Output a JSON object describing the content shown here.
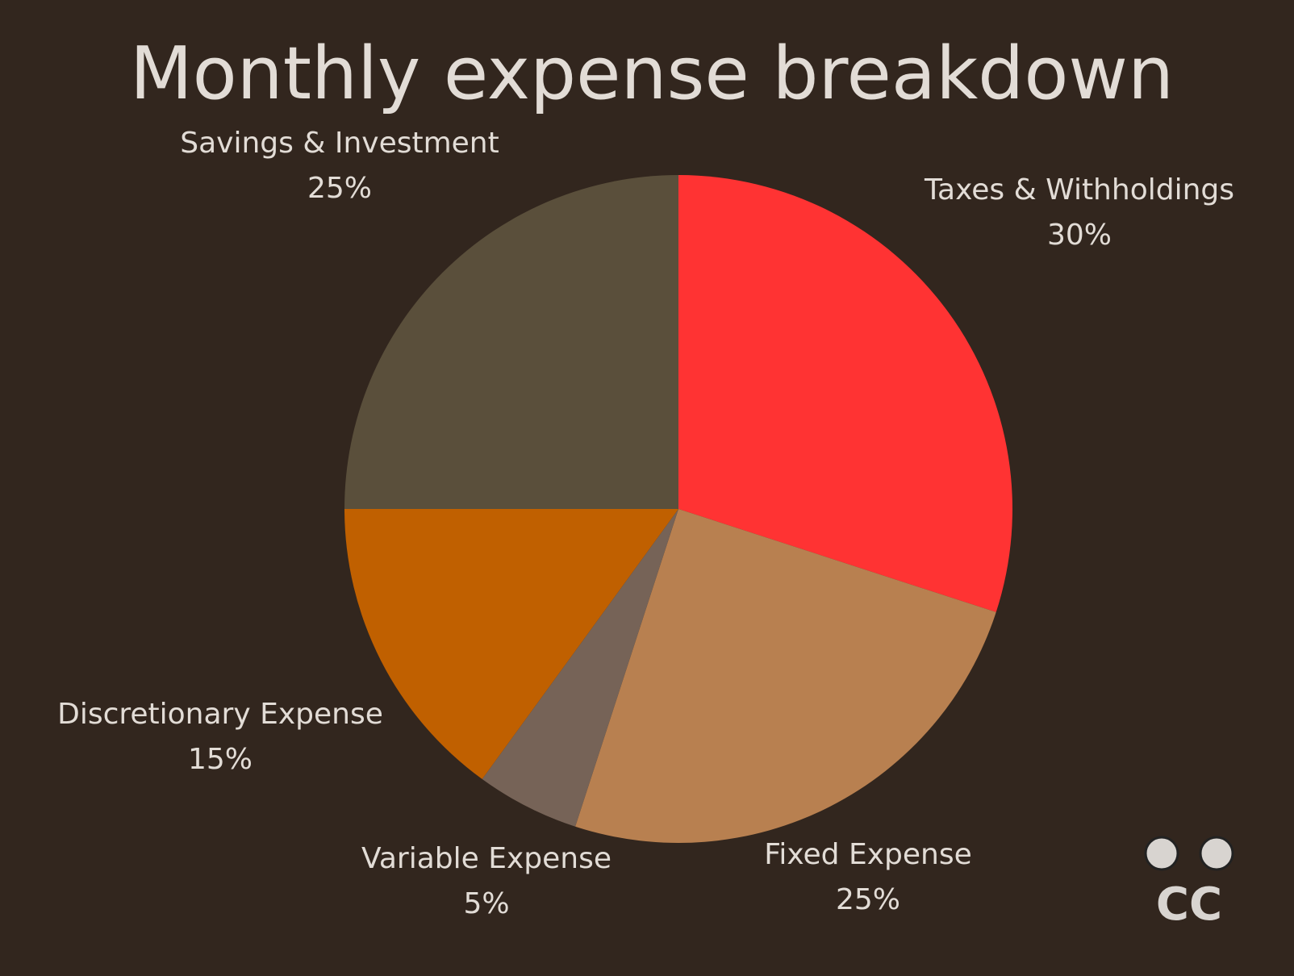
{
  "chart_data": {
    "type": "pie",
    "title": "Monthly expense breakdown",
    "categories": [
      "Taxes & Withholdings",
      "Fixed Expense",
      "Variable Expense",
      "Discretionary Expense",
      "Savings & Investment"
    ],
    "values": [
      30,
      25,
      5,
      15,
      25
    ],
    "value_labels": [
      "30%",
      "25%",
      "5%",
      "15%",
      "25%"
    ],
    "colors": [
      "#ff3333",
      "#b88050",
      "#766357",
      "#c06000",
      "#5a4f3b"
    ],
    "logo": "CC"
  }
}
